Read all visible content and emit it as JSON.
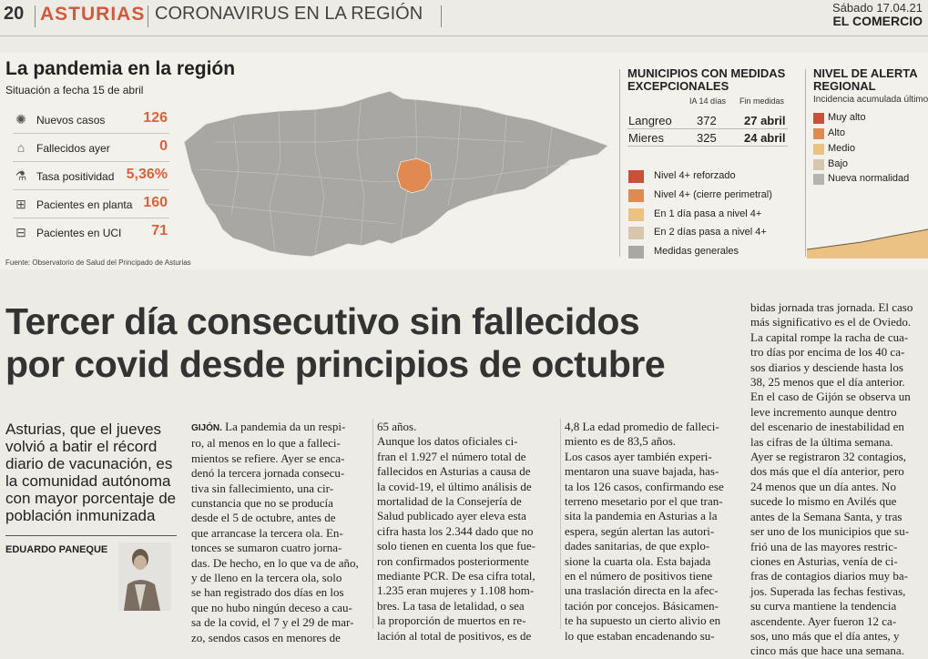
{
  "header": {
    "page_number": "20",
    "section": "ASTURIAS",
    "subsection": "CORONAVIRUS EN LA REGIÓN",
    "date": "Sábado 17.04.21",
    "newspaper": "EL COMERCIO"
  },
  "infographic": {
    "title": "La pandemia en la región",
    "subtitle": "Situación a fecha 15 de abril",
    "stats": [
      {
        "icon": "virus-icon",
        "label": "Nuevos casos",
        "value": "126"
      },
      {
        "icon": "tombstone-icon",
        "label": "Fallecidos ayer",
        "value": "0"
      },
      {
        "icon": "swab-icon",
        "label": "Tasa positividad",
        "value": "5,36%"
      },
      {
        "icon": "hospital-bed-icon",
        "label": "Pacientes en planta",
        "value": "160"
      },
      {
        "icon": "icu-bed-icon",
        "label": "Pacientes en UCI",
        "value": "71"
      }
    ],
    "source": "Fuente: Observatorio de Salud del Principado de Asturias",
    "municipalities": {
      "title_line1": "MUNICIPIOS CON MEDIDAS",
      "title_line2": "EXCEPCIONALES",
      "col_ia": "IA 14 días",
      "col_end": "Fin medidas",
      "rows": [
        {
          "name": "Langreo",
          "ia": "372",
          "end": "27 abril"
        },
        {
          "name": "Mieres",
          "ia": "325",
          "end": "24 abril"
        }
      ]
    },
    "map_legend": [
      {
        "label": "Nivel 4+ reforzado",
        "color": "#c9503a"
      },
      {
        "label": "Nivel 4+ (cierre perimetral)",
        "color": "#e08a52"
      },
      {
        "label": "En 1 día pasa a nivel 4+",
        "color": "#ecc184"
      },
      {
        "label": "En 2 días  pasa a nivel 4+",
        "color": "#d7c6ad"
      },
      {
        "label": "Medidas generales",
        "color": "#a9a8a5"
      }
    ],
    "alert": {
      "title_line1": "NIVEL DE ALERTA",
      "title_line2": "REGIONAL",
      "subtitle": "Incidencia acumulada último",
      "levels": [
        {
          "label": "Muy alto",
          "color": "#c9503a"
        },
        {
          "label": "Alto",
          "color": "#e08a52"
        },
        {
          "label": "Medio",
          "color": "#ecc184"
        },
        {
          "label": "Bajo",
          "color": "#d7c6ad"
        },
        {
          "label": "Nueva normalidad",
          "color": "#b5b4b0"
        }
      ]
    }
  },
  "article": {
    "headline_line1": "Tercer día consecutivo sin fallecidos",
    "headline_line2": "por covid desde principios de octubre",
    "lead": "Asturias, que el jueves volvió a batir el récord diario de vacunación, es la comunidad autónoma con mayor porcentaje de población inmunizada",
    "author": "EDUARDO PANEQUE",
    "col1_city": "GIJÓN.",
    "col1_text": " La pandemia da un respi-\nro, al menos en lo que a falleci-\nmientos se refiere. Ayer se enca-\ndenó la tercera jornada consecu-\ntiva sin fallecimiento, una cir-\ncunstancia que no se producía\ndesde el 5 de octubre, antes de\nque arrancase la tercera ola. En-\ntonces se sumaron cuatro jorna-\ndas. De hecho, en lo que va de año,\ny de lleno en la tercera ola, solo\nse han registrado dos días en los\nque no hubo ningún deceso a cau-\nsa de la covid, el 7 y el 29 de mar-\nzo, sendos casos en menores de",
    "col2_text": "65 años.\n   Aunque los datos oficiales ci-\nfran el 1.927 el número total de\nfallecidos en Asturias a causa de\nla covid-19, el último análisis de\nmortalidad de la Consejería de\nSalud publicado ayer eleva esta\ncifra hasta los 2.344 dado que no\nsolo tienen en cuenta los que fue-\nron confirmados posteriormente\nmediante PCR. De esa cifra total,\n1.235 eran mujeres y 1.108 hom-\nbres. La tasa de letalidad, o sea\nla proporción de muertos en re-\nlación al total de positivos, es de",
    "col3_text": "4,8 La edad promedio de falleci-\nmiento es de 83,5 años.\n   Los casos ayer también experi-\nmentaron una suave bajada, has-\nta los 126 casos, confirmando ese\nterreno mesetario por el que tran-\nsita la pandemia en Asturias a la\nespera, según alertan las autori-\ndades sanitarias, de que explo-\nsione la cuarta ola. Esta bajada\nen el número de positivos tiene\nuna traslación directa en la afec-\ntación por concejos. Básicamen-\nte ha supuesto un cierto alivio en\nlo que estaban encadenando su-",
    "col4_text": "bidas jornada tras jornada. El caso\nmás significativo es el de Oviedo.\nLa capital rompe la racha de cua-\ntro días por encima de los 40 ca-\nsos diarios y desciende hasta los\n38, 25 menos que el día anterior.\nEn el caso de Gijón se observa un\nleve incremento aunque dentro\ndel escenario de inestabilidad en\nlas cifras de la última semana.\nAyer se registraron 32 contagios,\ndos más que el día anterior, pero\n24 menos que un día antes. No\nsucede lo mismo en Avilés que\nantes de la Semana Santa, y tras\nser uno de los municipios que su-\nfrió una de las mayores restric-\nciones en Asturias, venía de ci-\nfras de contagios diarios muy ba-\njos. Superada las fechas festivas,\nsu curva mantiene la tendencia\nascendente. Ayer fueron 12 ca-\nsos, uno más que el día antes, y\ncinco más que hace una semana."
  }
}
